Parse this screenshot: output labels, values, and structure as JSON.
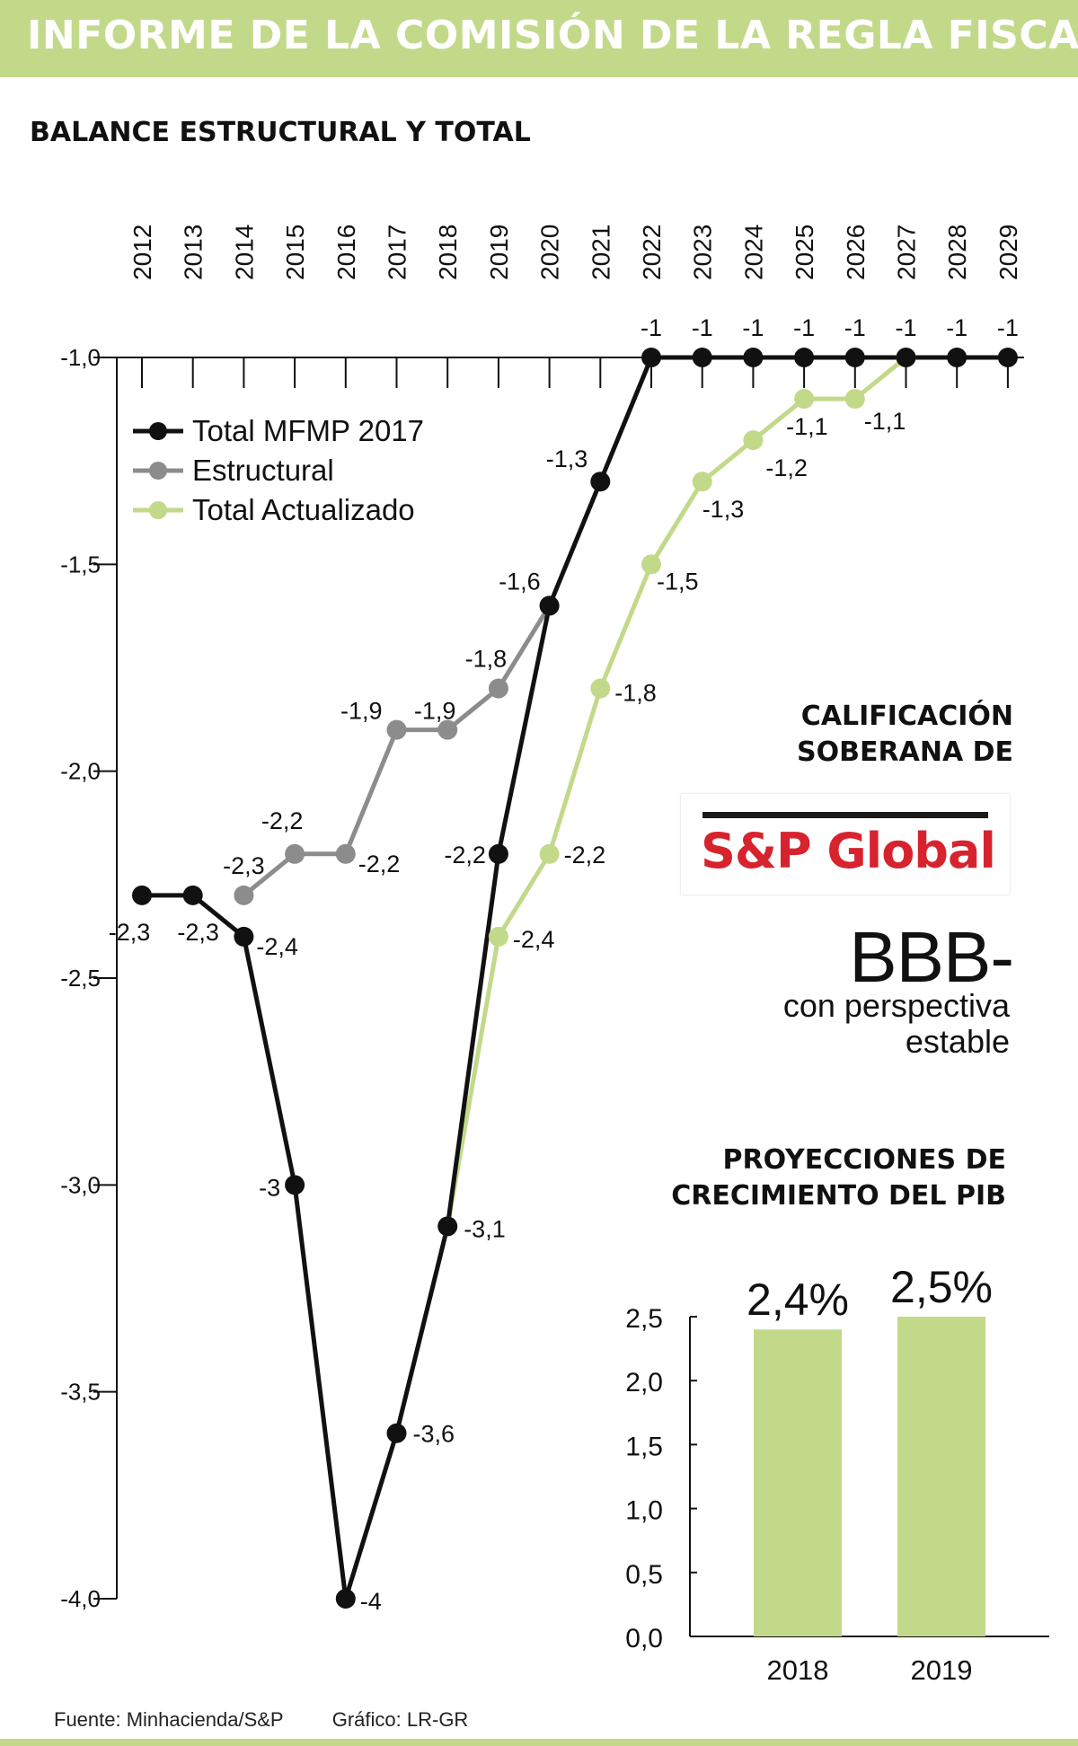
{
  "header": {
    "title": "INFORME DE LA COMISIÓN DE LA REGLA FISCAL"
  },
  "subtitle": "BALANCE ESTRUCTURAL Y TOTAL",
  "chart_data": [
    {
      "type": "line",
      "x": [
        "2012",
        "2013",
        "2014",
        "2015",
        "2016",
        "2017",
        "2018",
        "2019",
        "2020",
        "2021",
        "2022",
        "2023",
        "2024",
        "2025",
        "2026",
        "2027",
        "2028",
        "2029"
      ],
      "ylim": [
        -4.0,
        -1.0
      ],
      "yticks": [
        "-1,0",
        "-1,5",
        "-2,0",
        "-2,5",
        "-3,0",
        "-3,5",
        "-4,0"
      ],
      "grid": false,
      "legend_position": "top-left",
      "series": [
        {
          "name": "Total MFMP 2017",
          "color": "#111111",
          "values": [
            -2.3,
            -2.3,
            -2.4,
            -3.0,
            -4.0,
            -3.6,
            -3.1,
            -2.2,
            -1.6,
            -1.3,
            -1.0,
            -1.0,
            -1.0,
            -1.0,
            -1.0,
            -1.0,
            -1.0,
            -1.0
          ],
          "labels": [
            "-2,3",
            "-2,3",
            "-2,4",
            "-3",
            "-4",
            "-3,6",
            "-3,1",
            "-2,2",
            "-1,6",
            "-1,3",
            "-1",
            "-1",
            "-1",
            "-1",
            "-1",
            "-1",
            "-1",
            "-1"
          ]
        },
        {
          "name": "Estructural",
          "color": "#8c8c8c",
          "values": [
            null,
            null,
            -2.3,
            -2.2,
            -2.2,
            -1.9,
            -1.9,
            -1.8,
            -1.6,
            null,
            null,
            null,
            null,
            null,
            null,
            null,
            null,
            null
          ],
          "labels": [
            null,
            null,
            "-2,3",
            "-2,2",
            "-2,2",
            "-1,9",
            "-1,9",
            "-1,8",
            null,
            null,
            null,
            null,
            null,
            null,
            null,
            null,
            null,
            null
          ]
        },
        {
          "name": "Total Actualizado",
          "color": "#c3d98a",
          "values": [
            null,
            null,
            null,
            null,
            null,
            null,
            -3.1,
            -2.4,
            -2.2,
            -1.8,
            -1.5,
            -1.3,
            -1.2,
            -1.1,
            -1.1,
            -1.0,
            null,
            null
          ],
          "labels": [
            null,
            null,
            null,
            null,
            null,
            null,
            null,
            "-2,4",
            "-2,2",
            "-1,8",
            "-1,5",
            "-1,3",
            "-1,2",
            "-1,1",
            "-1,1",
            null,
            null,
            null
          ]
        }
      ]
    },
    {
      "type": "bar",
      "title": "PROYECCIONES DE CRECIMIENTO DEL PIB",
      "categories": [
        "2018",
        "2019"
      ],
      "values": [
        2.4,
        2.5
      ],
      "value_labels": [
        "2,4%",
        "2,5%"
      ],
      "ylim": [
        0,
        2.5
      ],
      "yticks": [
        "0,0",
        "0,5",
        "1,0",
        "1,5",
        "2,0",
        "2,5"
      ],
      "color": "#c3d98a"
    }
  ],
  "rating": {
    "title_line1": "CALIFICACIÓN",
    "title_line2": "SOBERANA DE",
    "logo_text": "S&P Global",
    "value": "BBB-",
    "outlook_line1": "con perspectiva",
    "outlook_line2": "estable"
  },
  "pib": {
    "title_line1": "PROYECCIONES DE",
    "title_line2": "CRECIMIENTO DEL PIB"
  },
  "footer": {
    "source": "Fuente: Minhacienda/S&P",
    "credit": "Gráfico: LR-GR"
  }
}
